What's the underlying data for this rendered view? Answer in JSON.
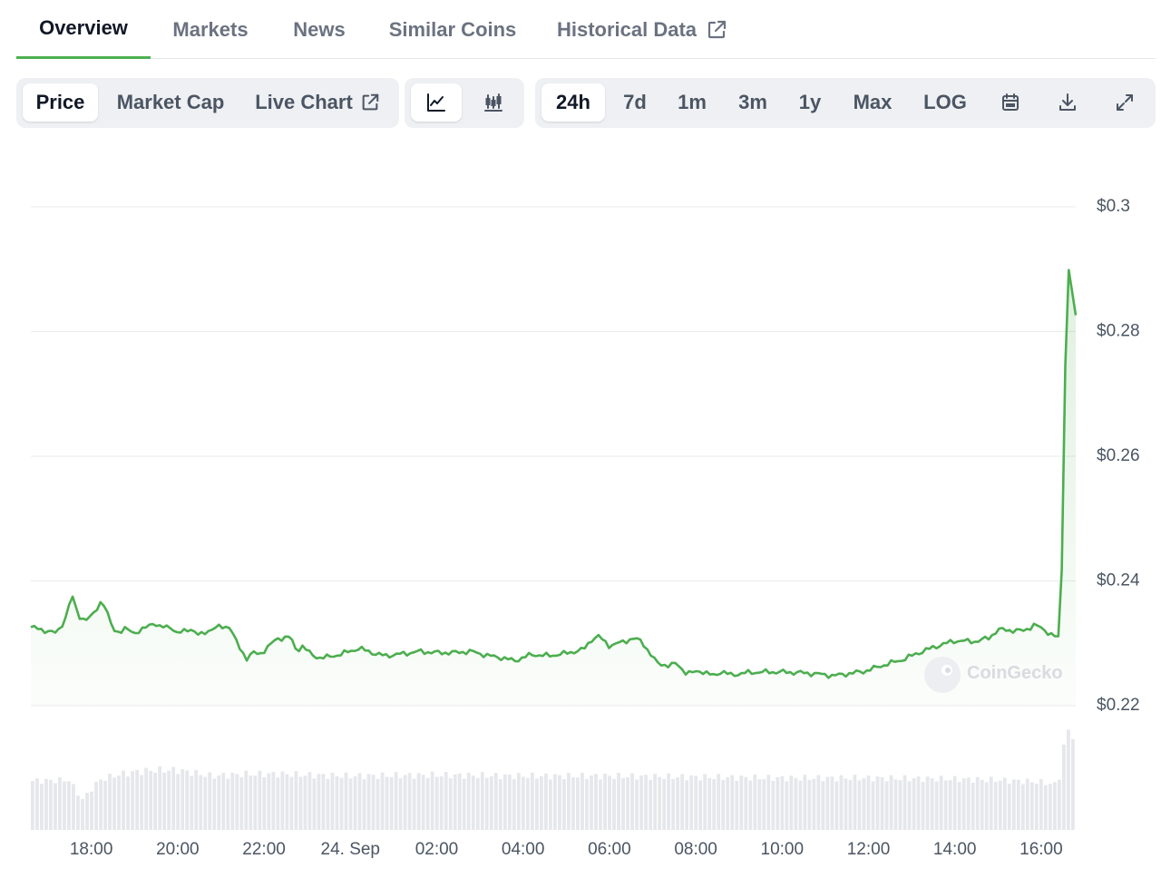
{
  "tabs": [
    {
      "label": "Overview",
      "active": true
    },
    {
      "label": "Markets",
      "active": false
    },
    {
      "label": "News",
      "active": false
    },
    {
      "label": "Similar Coins",
      "active": false
    },
    {
      "label": "Historical Data",
      "active": false,
      "icon": "external-link-icon"
    }
  ],
  "controls": {
    "chart_types": [
      {
        "label": "Price",
        "selected": true
      },
      {
        "label": "Market Cap",
        "selected": false
      },
      {
        "label": "Live Chart",
        "selected": false,
        "icon": "external-link-icon"
      }
    ],
    "chart_styles": [
      {
        "icon": "line-chart-icon",
        "selected": true
      },
      {
        "icon": "candlestick-chart-icon",
        "selected": false
      }
    ],
    "ranges": [
      {
        "label": "24h",
        "selected": true
      },
      {
        "label": "7d",
        "selected": false
      },
      {
        "label": "1m",
        "selected": false
      },
      {
        "label": "3m",
        "selected": false
      },
      {
        "label": "1y",
        "selected": false
      },
      {
        "label": "Max",
        "selected": false
      },
      {
        "label": "LOG",
        "selected": false
      }
    ],
    "tools": [
      {
        "icon": "calendar-icon"
      },
      {
        "icon": "download-icon"
      },
      {
        "icon": "expand-icon"
      }
    ]
  },
  "colors": {
    "line": "#4cae4f",
    "grid": "#e9ebee",
    "volume": "#e5e7eb",
    "accent": "#4cb050"
  },
  "chart_data": {
    "type": "line",
    "title": "",
    "watermark": "CoinGecko",
    "y_ticks": [
      {
        "value": 0.22,
        "label": "$0.22"
      },
      {
        "value": 0.24,
        "label": "$0.24"
      },
      {
        "value": 0.26,
        "label": "$0.26"
      },
      {
        "value": 0.28,
        "label": "$0.28"
      },
      {
        "value": 0.3,
        "label": "$0.3"
      }
    ],
    "ylim": [
      0.22,
      0.3
    ],
    "x_range_hours": [
      16.6,
      40.8
    ],
    "x_ticks": [
      {
        "h": 18,
        "label": "18:00"
      },
      {
        "h": 20,
        "label": "20:00"
      },
      {
        "h": 22,
        "label": "22:00"
      },
      {
        "h": 24,
        "label": "24. Sep"
      },
      {
        "h": 26,
        "label": "02:00"
      },
      {
        "h": 28,
        "label": "04:00"
      },
      {
        "h": 30,
        "label": "06:00"
      },
      {
        "h": 32,
        "label": "08:00"
      },
      {
        "h": 34,
        "label": "10:00"
      },
      {
        "h": 36,
        "label": "12:00"
      },
      {
        "h": 38,
        "label": "14:00"
      },
      {
        "h": 40,
        "label": "16:00"
      }
    ],
    "price_series": {
      "x": [
        16.6,
        16.9,
        17.2,
        17.4,
        17.55,
        17.7,
        17.85,
        18.0,
        18.25,
        18.5,
        18.65,
        18.8,
        19.0,
        19.2,
        19.45,
        19.6,
        19.85,
        20.0,
        20.3,
        20.5,
        20.75,
        20.95,
        21.2,
        21.4,
        21.6,
        21.75,
        21.9,
        22.1,
        22.3,
        22.6,
        22.75,
        22.9,
        23.1,
        23.3,
        23.5,
        23.8,
        24.2,
        24.6,
        24.8,
        25.2,
        25.6,
        26.0,
        26.4,
        26.8,
        27.2,
        27.5,
        27.8,
        28.2,
        28.6,
        29.0,
        29.4,
        29.6,
        29.75,
        30.0,
        30.3,
        30.55,
        30.75,
        31.1,
        31.4,
        31.55,
        31.8,
        32.1,
        32.4,
        32.6,
        32.8,
        33.2,
        33.6,
        34.0,
        34.4,
        34.8,
        35.2,
        35.6,
        35.9,
        36.3,
        36.8,
        37.1,
        37.4,
        37.7,
        38.0,
        38.5,
        38.8,
        39.0,
        39.3,
        39.6,
        39.85,
        40.15,
        40.35,
        40.45,
        40.6,
        40.8
      ],
      "y": [
        0.2326,
        0.2321,
        0.2316,
        0.234,
        0.2377,
        0.2345,
        0.2337,
        0.2342,
        0.237,
        0.2323,
        0.2318,
        0.2323,
        0.2317,
        0.2322,
        0.2334,
        0.2325,
        0.2327,
        0.2315,
        0.2324,
        0.2312,
        0.2322,
        0.2326,
        0.2327,
        0.2296,
        0.2276,
        0.2285,
        0.2282,
        0.2295,
        0.2307,
        0.2311,
        0.2288,
        0.2296,
        0.2281,
        0.2277,
        0.2278,
        0.2283,
        0.2292,
        0.2283,
        0.228,
        0.2283,
        0.2287,
        0.2285,
        0.2285,
        0.2287,
        0.228,
        0.2277,
        0.2272,
        0.2282,
        0.228,
        0.2284,
        0.229,
        0.2307,
        0.2311,
        0.2296,
        0.2302,
        0.2308,
        0.2303,
        0.2268,
        0.2264,
        0.2268,
        0.2251,
        0.2256,
        0.2248,
        0.2255,
        0.2249,
        0.2253,
        0.2254,
        0.2254,
        0.2253,
        0.2251,
        0.2248,
        0.2252,
        0.2255,
        0.2264,
        0.2274,
        0.2283,
        0.2291,
        0.2298,
        0.2304,
        0.2303,
        0.2309,
        0.2322,
        0.2321,
        0.232,
        0.233,
        0.2318,
        0.231,
        0.2307,
        0.2916,
        0.2826
      ]
    },
    "volume_series": {
      "x": [
        16.6,
        17.5,
        17.8,
        18.2,
        18.6,
        19.0,
        19.5,
        20.0,
        20.4,
        20.8,
        21.2,
        21.6,
        22.0,
        22.5,
        23.0,
        24.0,
        26.0,
        28.0,
        30.0,
        32.0,
        34.0,
        36.0,
        38.0,
        39.0,
        40.0,
        40.4,
        40.6,
        40.8
      ],
      "y": [
        0.49,
        0.5,
        0.3,
        0.5,
        0.55,
        0.58,
        0.6,
        0.6,
        0.57,
        0.54,
        0.55,
        0.56,
        0.56,
        0.56,
        0.55,
        0.54,
        0.55,
        0.54,
        0.54,
        0.53,
        0.52,
        0.52,
        0.51,
        0.5,
        0.48,
        0.45,
        1.0,
        0.95
      ]
    }
  }
}
